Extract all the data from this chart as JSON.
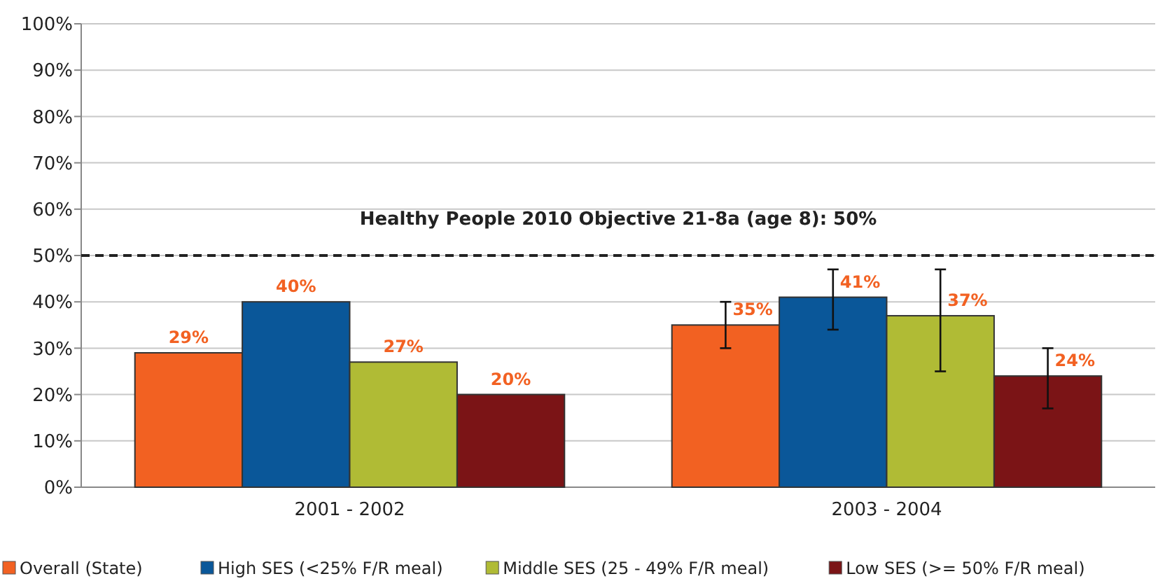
{
  "chart_data": {
    "type": "bar",
    "categories": [
      "2001 - 2002",
      "2003 - 2004"
    ],
    "series": [
      {
        "name": "Overall (State)",
        "color": "#f26122",
        "values": [
          29,
          35
        ],
        "value_labels": [
          "29%",
          "35%"
        ],
        "errors": [
          null,
          [
            30,
            40
          ]
        ]
      },
      {
        "name": "High SES (<25% F/R meal)",
        "color": "#0a5799",
        "values": [
          40,
          41
        ],
        "value_labels": [
          "40%",
          "41%"
        ],
        "errors": [
          null,
          [
            34,
            47
          ]
        ]
      },
      {
        "name": "Middle SES (25 - 49% F/R meal)",
        "color": "#b0bb35",
        "values": [
          27,
          37
        ],
        "value_labels": [
          "27%",
          "37%"
        ],
        "errors": [
          null,
          [
            25,
            47
          ]
        ]
      },
      {
        "name": "Low SES (>= 50% F/R meal)",
        "color": "#7b1416",
        "values": [
          20,
          24
        ],
        "value_labels": [
          "20%",
          "24%"
        ],
        "errors": [
          null,
          [
            17,
            30
          ]
        ]
      }
    ],
    "ylim": [
      0,
      100
    ],
    "yticks": [
      {
        "value": 0,
        "label": "0%"
      },
      {
        "value": 10,
        "label": "10%"
      },
      {
        "value": 20,
        "label": "20%"
      },
      {
        "value": 30,
        "label": "30%"
      },
      {
        "value": 40,
        "label": "40%"
      },
      {
        "value": 50,
        "label": "50%"
      },
      {
        "value": 60,
        "label": "60%"
      },
      {
        "value": 70,
        "label": "70%"
      },
      {
        "value": 80,
        "label": "80%"
      },
      {
        "value": 90,
        "label": "90%"
      },
      {
        "value": 100,
        "label": "100%"
      }
    ],
    "grid": "y",
    "legend": "bottom",
    "ref_lines": [
      {
        "axis": "y",
        "value": 50,
        "label": "Healthy People 2010 Objective 21-8a (age 8): 50%",
        "color": "#222222",
        "line_style": "dashed"
      }
    ]
  }
}
